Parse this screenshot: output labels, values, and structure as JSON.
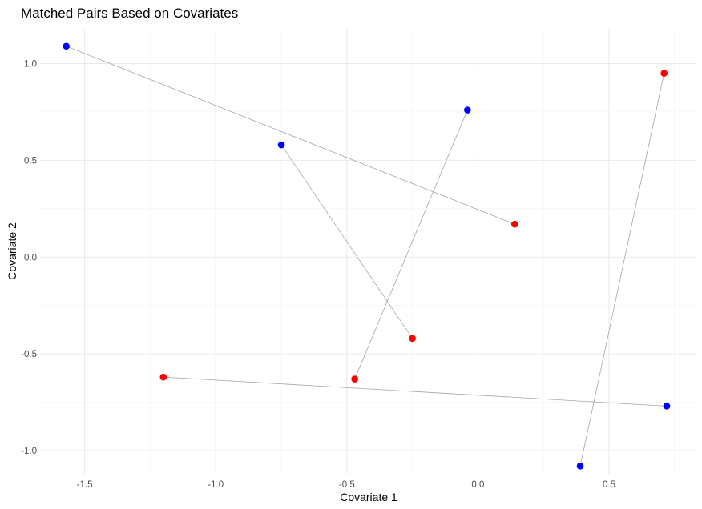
{
  "chart_data": {
    "type": "scatter",
    "title": "Matched Pairs Based on Covariates",
    "xlabel": "Covariate 1",
    "ylabel": "Covariate 2",
    "xlim": [
      -1.67,
      0.83
    ],
    "ylim": [
      -1.12,
      1.18
    ],
    "x_ticks": [
      -1.5,
      -1.0,
      -0.5,
      0.0,
      0.5
    ],
    "x_tick_labels": [
      "-1.5",
      "-1.0",
      "-0.5",
      "0.0",
      "0.5"
    ],
    "y_ticks": [
      -1.0,
      -0.5,
      0.0,
      0.5,
      1.0
    ],
    "y_tick_labels": [
      "-1.0",
      "-0.5",
      "0.0",
      "0.5",
      "1.0"
    ],
    "grid": true,
    "legend": "none",
    "colors": {
      "group_a": "#0000ff",
      "group_b": "#ff0000",
      "pair_line": "#a6a6a6"
    },
    "pairs": [
      {
        "blue": [
          -1.57,
          1.09
        ],
        "red": [
          0.14,
          0.17
        ]
      },
      {
        "blue": [
          -0.75,
          0.58
        ],
        "red": [
          -0.25,
          -0.42
        ]
      },
      {
        "blue": [
          -0.04,
          0.76
        ],
        "red": [
          -0.47,
          -0.63
        ]
      },
      {
        "blue": [
          0.72,
          -0.77
        ],
        "red": [
          -1.2,
          -0.62
        ]
      },
      {
        "blue": [
          0.39,
          -1.08
        ],
        "red": [
          0.71,
          0.95
        ]
      }
    ]
  }
}
